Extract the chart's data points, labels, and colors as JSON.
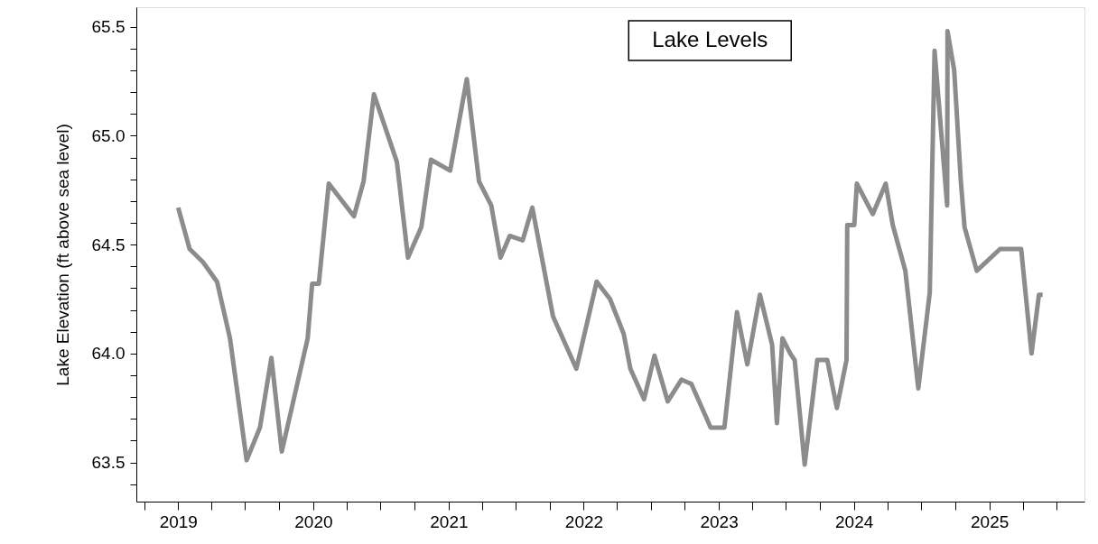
{
  "chart_data": {
    "type": "line",
    "title": "Lake Levels",
    "ylabel": "Lake Elevation (ft above sea level)",
    "x": [
      "2019-01-01",
      "2019-02-01",
      "2019-03-09",
      "2019-04-16",
      "2019-05-21",
      "2019-07-05",
      "2019-08-10",
      "2019-09-10",
      "2019-10-08",
      "2019-12-17",
      "2019-12-29",
      "2020-01-16",
      "2020-02-12",
      "2020-04-20",
      "2020-05-16",
      "2020-06-13",
      "2020-08-14",
      "2020-09-13",
      "2020-10-19",
      "2020-11-14",
      "2021-01-05",
      "2021-02-19",
      "2021-03-24",
      "2021-04-26",
      "2021-05-21",
      "2021-06-15",
      "2021-07-20",
      "2021-08-15",
      "2021-10-10",
      "2021-12-12",
      "2022-02-05",
      "2022-03-13",
      "2022-04-19",
      "2022-05-07",
      "2022-06-13",
      "2022-07-11",
      "2022-08-16",
      "2022-09-22",
      "2022-10-19",
      "2022-12-10",
      "2023-01-16",
      "2023-02-19",
      "2023-03-19",
      "2023-04-22",
      "2023-05-25",
      "2023-06-07",
      "2023-06-22",
      "2023-07-13",
      "2023-07-25",
      "2023-08-21",
      "2023-09-24",
      "2023-10-21",
      "2023-11-16",
      "2023-12-12",
      "2023-12-14",
      "2024-01-02",
      "2024-01-09",
      "2024-02-21",
      "2024-03-27",
      "2024-04-15",
      "2024-05-19",
      "2024-06-23",
      "2024-07-24",
      "2024-08-06",
      "2024-09-09",
      "2024-09-10",
      "2024-09-28",
      "2024-10-16",
      "2024-10-26",
      "2024-11-28",
      "2025-01-30",
      "2025-03-28",
      "2025-04-25",
      "2025-05-15",
      "2025-05-25"
    ],
    "series": [
      {
        "color": "#8c8c8c",
        "values": [
          64.67,
          64.48,
          64.42,
          64.33,
          64.07,
          63.51,
          63.66,
          63.98,
          63.55,
          64.07,
          64.32,
          64.32,
          64.78,
          64.63,
          64.79,
          65.19,
          64.88,
          64.44,
          64.58,
          64.89,
          64.84,
          65.26,
          64.79,
          64.68,
          64.44,
          64.54,
          64.52,
          64.67,
          64.17,
          63.93,
          64.33,
          64.25,
          64.09,
          63.93,
          63.79,
          63.99,
          63.78,
          63.88,
          63.86,
          63.66,
          63.66,
          64.19,
          63.95,
          64.27,
          64.04,
          63.68,
          64.07,
          64.0,
          63.97,
          63.49,
          63.97,
          63.97,
          63.75,
          63.97,
          64.59,
          64.59,
          64.78,
          64.64,
          64.78,
          64.59,
          64.38,
          63.84,
          64.28,
          65.39,
          64.68,
          65.48,
          65.3,
          64.79,
          64.58,
          64.38,
          64.48,
          64.48,
          64.0,
          64.27,
          64.27
        ]
      }
    ],
    "xlim": [
      "2018-09-10",
      "2025-09-15"
    ],
    "xticks": [
      {
        "value": "2018-10",
        "label": null
      },
      "2019",
      {
        "value": "2019-04",
        "label": null
      },
      {
        "value": "2019-07",
        "label": null
      },
      {
        "value": "2019-10",
        "label": null
      },
      "2020",
      {
        "value": "2020-04",
        "label": null
      },
      {
        "value": "2020-07",
        "label": null
      },
      {
        "value": "2020-10",
        "label": null
      },
      "2021",
      {
        "value": "2021-04",
        "label": null
      },
      {
        "value": "2021-07",
        "label": null
      },
      {
        "value": "2021-10",
        "label": null
      },
      "2022",
      {
        "value": "2022-04",
        "label": null
      },
      {
        "value": "2022-07",
        "label": null
      },
      {
        "value": "2022-10",
        "label": null
      },
      "2023",
      {
        "value": "2023-04",
        "label": null
      },
      {
        "value": "2023-07",
        "label": null
      },
      {
        "value": "2023-10",
        "label": null
      },
      "2024",
      {
        "value": "2024-04",
        "label": null
      },
      {
        "value": "2024-07",
        "label": null
      },
      {
        "value": "2024-10",
        "label": null
      },
      "2025",
      {
        "value": "2025-04",
        "label": null
      },
      {
        "value": "2025-07",
        "label": null
      }
    ],
    "ylim": [
      63.32,
      65.59
    ],
    "yticks": [
      {
        "value": 63.4,
        "label": null
      },
      {
        "value": 63.5,
        "label": "63.5"
      },
      {
        "value": 63.6,
        "label": null
      },
      {
        "value": 63.7,
        "label": null
      },
      {
        "value": 63.8,
        "label": null
      },
      {
        "value": 63.9,
        "label": null
      },
      {
        "value": 64,
        "label": "64.0"
      },
      {
        "value": 64.1,
        "label": null
      },
      {
        "value": 64.2,
        "label": null
      },
      {
        "value": 64.3,
        "label": null
      },
      {
        "value": 64.4,
        "label": null
      },
      {
        "value": 64.5,
        "label": "64.5"
      },
      {
        "value": 64.6,
        "label": null
      },
      {
        "value": 64.7,
        "label": null
      },
      {
        "value": 64.8,
        "label": null
      },
      {
        "value": 64.9,
        "label": null
      },
      {
        "value": 65,
        "label": "65.0"
      },
      {
        "value": 65.1,
        "label": null
      },
      {
        "value": 65.2,
        "label": null
      },
      {
        "value": 65.3,
        "label": null
      },
      {
        "value": 65.4,
        "label": null
      },
      {
        "value": 65.5,
        "label": "65.5"
      }
    ],
    "grid": false,
    "marker": "none",
    "line_style": "solid"
  }
}
